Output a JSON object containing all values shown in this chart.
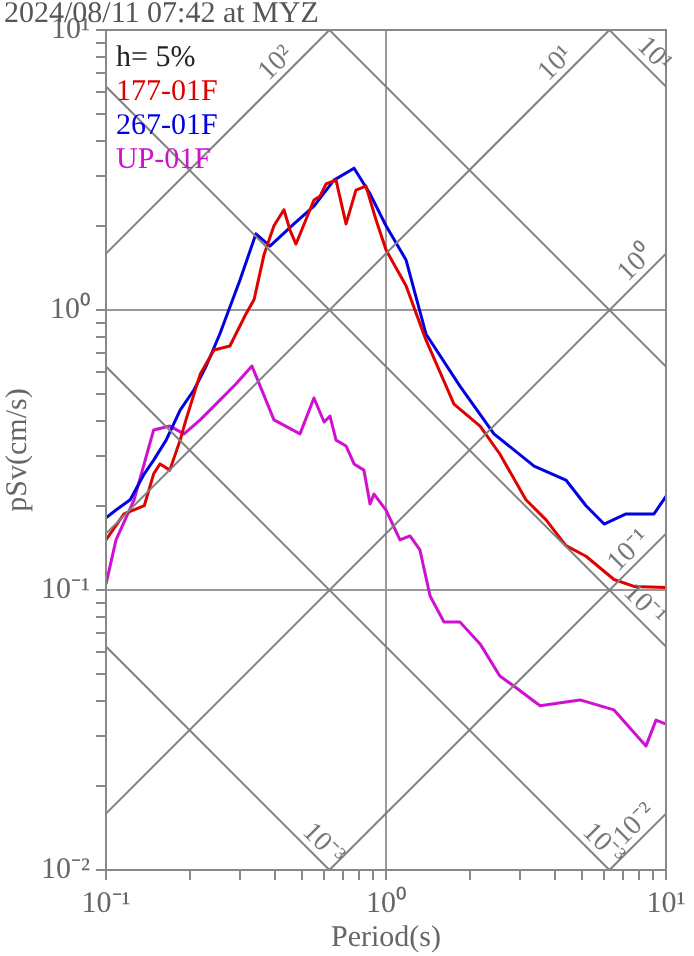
{
  "chart_data": {
    "type": "line",
    "title": "2024/08/11 07:42 at MYZ",
    "xlabel": "Period(s)",
    "ylabel": "pSv(cm/s)",
    "log": "xy",
    "grid": true,
    "legend": "top left",
    "xlim": [
      0.1,
      10
    ],
    "ylim": [
      0.01,
      10
    ],
    "xticks": [
      {
        "value": 0.1,
        "label": "10⁻¹"
      },
      {
        "value": 0.2,
        "label": null
      },
      {
        "value": 0.3,
        "label": null
      },
      {
        "value": 0.4,
        "label": null
      },
      {
        "value": 0.5,
        "label": null
      },
      {
        "value": 0.6,
        "label": null
      },
      {
        "value": 0.7,
        "label": null
      },
      {
        "value": 0.8,
        "label": null
      },
      {
        "value": 0.9,
        "label": null
      },
      {
        "value": 1,
        "label": "10⁰"
      },
      {
        "value": 2,
        "label": null
      },
      {
        "value": 3,
        "label": null
      },
      {
        "value": 4,
        "label": null
      },
      {
        "value": 5,
        "label": null
      },
      {
        "value": 6,
        "label": null
      },
      {
        "value": 7,
        "label": null
      },
      {
        "value": 8,
        "label": null
      },
      {
        "value": 9,
        "label": null
      },
      {
        "value": 10,
        "label": "10¹"
      }
    ],
    "yticks": [
      {
        "value": 0.01,
        "label": "10⁻²"
      },
      {
        "value": 0.02,
        "label": null
      },
      {
        "value": 0.03,
        "label": null
      },
      {
        "value": 0.04,
        "label": null
      },
      {
        "value": 0.05,
        "label": null
      },
      {
        "value": 0.06,
        "label": null
      },
      {
        "value": 0.07,
        "label": null
      },
      {
        "value": 0.08,
        "label": null
      },
      {
        "value": 0.09,
        "label": null
      },
      {
        "value": 0.1,
        "label": "10⁻¹"
      },
      {
        "value": 0.2,
        "label": null
      },
      {
        "value": 0.3,
        "label": null
      },
      {
        "value": 0.4,
        "label": null
      },
      {
        "value": 0.5,
        "label": null
      },
      {
        "value": 0.6,
        "label": null
      },
      {
        "value": 0.7,
        "label": null
      },
      {
        "value": 0.8,
        "label": null
      },
      {
        "value": 0.9,
        "label": null
      },
      {
        "value": 1,
        "label": "10⁰"
      },
      {
        "value": 2,
        "label": null
      },
      {
        "value": 3,
        "label": null
      },
      {
        "value": 4,
        "label": null
      },
      {
        "value": 5,
        "label": null
      },
      {
        "value": 6,
        "label": null
      },
      {
        "value": 7,
        "label": null
      },
      {
        "value": 8,
        "label": null
      },
      {
        "value": 9,
        "label": null
      },
      {
        "value": 10,
        "label": "10¹"
      }
    ],
    "series": [
      {
        "color": "#808080",
        "x": [
          0.1,
          0.628
        ],
        "values": [
          0.0628,
          0.01
        ]
      },
      {
        "color": "#808080",
        "x": [
          0.1,
          6.28
        ],
        "values": [
          0.628,
          0.01
        ]
      },
      {
        "color": "#808080",
        "x": [
          0.1,
          10
        ],
        "values": [
          6.28,
          0.0628
        ]
      },
      {
        "color": "#808080",
        "x": [
          0.628,
          10
        ],
        "values": [
          10,
          0.628
        ]
      },
      {
        "color": "#808080",
        "x": [
          6.28,
          10
        ],
        "values": [
          10,
          6.28
        ]
      },
      {
        "color": "#808080",
        "x": [
          0.1,
          0.628
        ],
        "values": [
          1.59,
          10
        ]
      },
      {
        "color": "#808080",
        "x": [
          0.1,
          6.28
        ],
        "values": [
          0.159,
          10
        ]
      },
      {
        "color": "#808080",
        "x": [
          0.1,
          10
        ],
        "values": [
          0.0159,
          1.59
        ]
      },
      {
        "color": "#808080",
        "x": [
          0.628,
          10
        ],
        "values": [
          0.01,
          0.159
        ]
      },
      {
        "color": "#808080",
        "x": [
          6.28,
          10
        ],
        "values": [
          0.01,
          0.0159
        ]
      },
      {
        "name": "177-01F",
        "color": "#e00000",
        "x": [
          0.1,
          0.116,
          0.137,
          0.148,
          0.156,
          0.169,
          0.184,
          0.193,
          0.217,
          0.243,
          0.277,
          0.316,
          0.338,
          0.367,
          0.398,
          0.432,
          0.454,
          0.477,
          0.553,
          0.581,
          0.611,
          0.663,
          0.72,
          0.781,
          0.848,
          0.921,
          1.0,
          1.179,
          1.389,
          1.749,
          2.168,
          2.55,
          3.16,
          3.73,
          4.39,
          5.18,
          6.52,
          7.69,
          10
        ],
        "values": [
          0.151,
          0.187,
          0.2,
          0.26,
          0.282,
          0.268,
          0.343,
          0.405,
          0.59,
          0.72,
          0.744,
          0.968,
          1.09,
          1.58,
          2.0,
          2.28,
          1.93,
          1.72,
          2.47,
          2.55,
          2.82,
          2.91,
          2.03,
          2.68,
          2.77,
          2.1,
          1.64,
          1.22,
          0.782,
          0.461,
          0.385,
          0.306,
          0.21,
          0.178,
          0.144,
          0.132,
          0.109,
          0.103,
          0.102
        ]
      },
      {
        "name": "267-01F",
        "color": "#0000e0",
        "x": [
          0.1,
          0.1086,
          0.122,
          0.137,
          0.148,
          0.164,
          0.184,
          0.206,
          0.228,
          0.255,
          0.301,
          0.343,
          0.385,
          0.469,
          0.553,
          0.652,
          0.769,
          0.877,
          1.0,
          1.179,
          1.389,
          1.837,
          2.43,
          3.38,
          4.39,
          5.18,
          6.01,
          7.2,
          9.06,
          10
        ],
        "values": [
          0.181,
          0.193,
          0.21,
          0.26,
          0.291,
          0.343,
          0.439,
          0.518,
          0.631,
          0.821,
          1.28,
          1.87,
          1.69,
          2.03,
          2.35,
          2.91,
          3.21,
          2.6,
          2.0,
          1.51,
          0.821,
          0.535,
          0.361,
          0.277,
          0.247,
          0.2,
          0.172,
          0.187,
          0.187,
          0.216
        ]
      },
      {
        "name": "UP-01F",
        "color": "#d010d0",
        "x": [
          0.1,
          0.1086,
          0.126,
          0.148,
          0.169,
          0.19,
          0.217,
          0.247,
          0.291,
          0.332,
          0.398,
          0.493,
          0.553,
          0.601,
          0.631,
          0.663,
          0.72,
          0.769,
          0.834,
          0.877,
          0.906,
          1.0,
          1.122,
          1.218,
          1.322,
          1.437,
          1.611,
          1.837,
          2.168,
          2.55,
          2.86,
          3.55,
          4.93,
          6.52,
          8.48,
          9.21,
          10
        ],
        "values": [
          0.105,
          0.151,
          0.21,
          0.373,
          0.385,
          0.361,
          0.405,
          0.461,
          0.544,
          0.631,
          0.405,
          0.361,
          0.485,
          0.398,
          0.418,
          0.343,
          0.327,
          0.282,
          0.268,
          0.203,
          0.22,
          0.193,
          0.151,
          0.156,
          0.139,
          0.0952,
          0.0769,
          0.0769,
          0.0642,
          0.0493,
          0.0454,
          0.0386,
          0.0405,
          0.0373,
          0.0277,
          0.0343,
          0.0332
        ]
      }
    ],
    "annotations": [
      "h= 5%",
      {
        "text": "10²",
        "x": 0.44,
        "y": 7.0
      },
      {
        "text": "10¹",
        "x": 4.39,
        "y": 6.99
      },
      {
        "text": "10¹",
        "x": 8.35,
        "y": 7.52
      },
      {
        "text": "10⁰",
        "x": 8.48,
        "y": 1.35
      },
      {
        "text": "10⁻¹",
        "x": 8.0,
        "y": 0.127
      },
      {
        "text": "10⁻¹",
        "x": 7.7,
        "y": 0.0816
      },
      {
        "text": "10⁻³",
        "x": 0.55,
        "y": 0.0114
      },
      {
        "text": "10⁻³",
        "x": 5.5,
        "y": 0.0114
      },
      {
        "text": "10⁻²",
        "x": 8.4,
        "y": 0.0134
      }
    ]
  }
}
